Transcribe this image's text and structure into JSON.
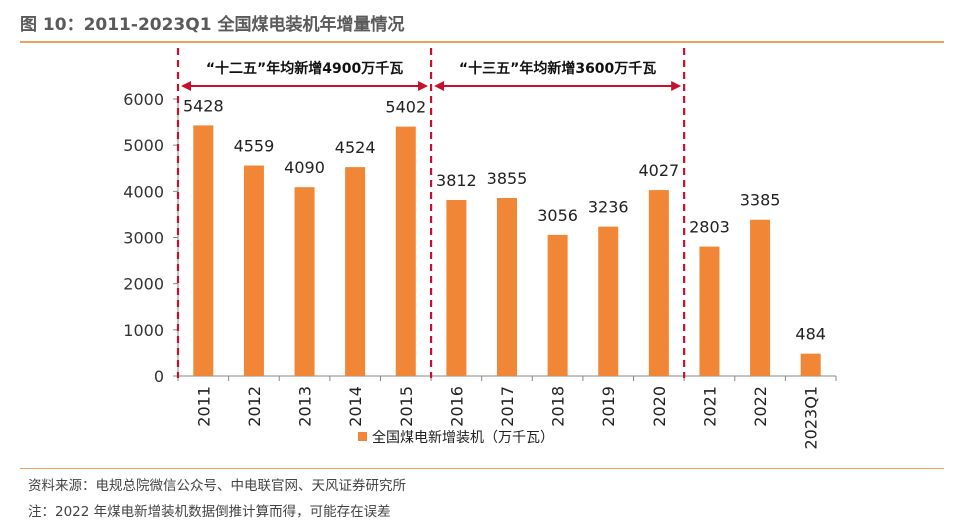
{
  "figure": {
    "title": "图 10：2011-2023Q1 全国煤电装机年增量情况",
    "source": "资料来源：电规总院微信公众号、中电联官网、天风证券研究所",
    "note": "注：2022 年煤电新增装机数据倒推计算而得，可能存在误差"
  },
  "chart_data": {
    "type": "bar",
    "categories": [
      "2011",
      "2012",
      "2013",
      "2014",
      "2015",
      "2016",
      "2017",
      "2018",
      "2019",
      "2020",
      "2021",
      "2022",
      "2023Q1"
    ],
    "series": [
      {
        "name": "全国煤电新增装机（万千瓦）",
        "values": [
          5428,
          4559,
          4090,
          4524,
          5402,
          3812,
          3855,
          3056,
          3236,
          4027,
          2803,
          3385,
          484
        ],
        "color": "#f08636"
      }
    ],
    "ylim": [
      0,
      6000
    ],
    "yticks": [
      0,
      1000,
      2000,
      3000,
      4000,
      5000,
      6000
    ],
    "grid": false,
    "legend": "bottom",
    "annotations": [
      {
        "text": "“十二五”年均新增4900万千瓦",
        "from_category": "2011",
        "to_category": "2015"
      },
      {
        "text": "“十三五”年均新增3600万千瓦",
        "from_category": "2016",
        "to_category": "2020"
      }
    ],
    "annotation_color": "#c8102e"
  }
}
